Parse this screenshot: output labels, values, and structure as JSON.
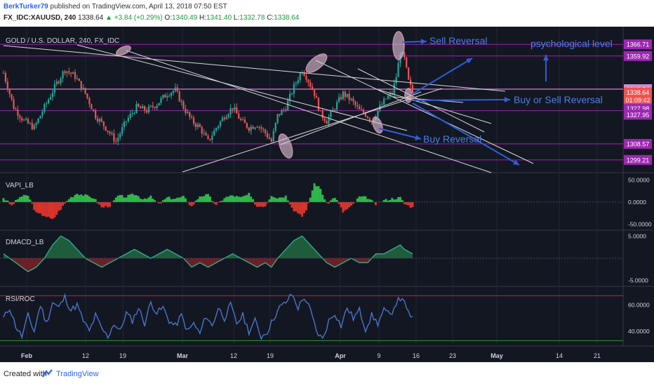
{
  "header": {
    "author": "BerkTurker79",
    "published_text": "published on TradingView.com, April 13, 2018 07:50 EST",
    "symbol_line": {
      "symbol": "FX_IDC:XAUUSD, 240",
      "last": "1338.64",
      "change": "▲ +3.84 (+0.29%)",
      "o_label": "O:",
      "o": "1340.49",
      "h_label": "H:",
      "h": "1341.40",
      "l_label": "L:",
      "l": "1332.78",
      "c_label": "C:",
      "c": "1338.64"
    }
  },
  "footer": {
    "created_with": "Created with",
    "brand": "TradingView"
  },
  "colors": {
    "background": "#131722",
    "up": "#26a69a",
    "down": "#ef5350",
    "purple": "#9c27b0",
    "annot": "#2962ff",
    "rsi": "#4a74c9",
    "macd_line": "#33aa88"
  },
  "chart_data": [
    {
      "type": "candlestick",
      "title": "GOLD / U.S. DOLLAR, 240, FX_IDC",
      "ylim": [
        1293,
        1375
      ],
      "price_labels": [
        "1366.71",
        "1359.92",
        "1340.54",
        "1338.64",
        "01:09:42",
        "1327.98",
        "1327.95",
        "1308.57",
        "1299.21"
      ],
      "horizontal_levels": [
        1366.71,
        1359.92,
        1340.54,
        1327.98,
        1308.57,
        1299.21
      ],
      "close_points": [
        [
          0,
          1350
        ],
        [
          5,
          1330
        ],
        [
          10,
          1322
        ],
        [
          15,
          1318
        ],
        [
          20,
          1330
        ],
        [
          26,
          1344
        ],
        [
          30,
          1352
        ],
        [
          35,
          1348
        ],
        [
          40,
          1338
        ],
        [
          45,
          1325
        ],
        [
          50,
          1318
        ],
        [
          55,
          1310
        ],
        [
          60,
          1322
        ],
        [
          65,
          1330
        ],
        [
          70,
          1328
        ],
        [
          75,
          1332
        ],
        [
          80,
          1338
        ],
        [
          84,
          1340
        ],
        [
          88,
          1330
        ],
        [
          92,
          1322
        ],
        [
          96,
          1318
        ],
        [
          100,
          1310
        ],
        [
          104,
          1318
        ],
        [
          108,
          1325
        ],
        [
          112,
          1330
        ],
        [
          116,
          1322
        ],
        [
          120,
          1318
        ],
        [
          124,
          1320
        ],
        [
          128,
          1315
        ],
        [
          131,
          1310
        ],
        [
          134,
          1325
        ],
        [
          138,
          1330
        ],
        [
          142,
          1342
        ],
        [
          146,
          1352
        ],
        [
          148,
          1348
        ],
        [
          152,
          1338
        ],
        [
          155,
          1326
        ],
        [
          158,
          1322
        ],
        [
          162,
          1330
        ],
        [
          166,
          1338
        ],
        [
          170,
          1334
        ],
        [
          174,
          1328
        ],
        [
          177,
          1326
        ],
        [
          180,
          1322
        ],
        [
          184,
          1330
        ],
        [
          187,
          1335
        ],
        [
          190,
          1338
        ],
        [
          192,
          1348
        ],
        [
          194,
          1362
        ],
        [
          196,
          1358
        ],
        [
          198,
          1345
        ],
        [
          200,
          1338
        ]
      ],
      "annotations": [
        "Sell Reversal",
        "psychological level",
        "Buy or Sell Reversal",
        "Buy Reversal"
      ],
      "x_ticks": [
        "Feb",
        "12",
        "19",
        "Mar",
        "12",
        "19",
        "Apr",
        "9",
        "16",
        "23",
        "May",
        "14",
        "21"
      ]
    },
    {
      "type": "histogram",
      "title": "VAPI_LB",
      "y_ticks": [
        "50.0000",
        "0.0000",
        "-50.0000"
      ],
      "ylim": [
        -60,
        60
      ],
      "values_points": [
        [
          0,
          10
        ],
        [
          4,
          -8
        ],
        [
          8,
          12
        ],
        [
          12,
          15
        ],
        [
          16,
          -25
        ],
        [
          20,
          -30
        ],
        [
          24,
          -40
        ],
        [
          28,
          -15
        ],
        [
          32,
          8
        ],
        [
          36,
          20
        ],
        [
          40,
          15
        ],
        [
          44,
          10
        ],
        [
          48,
          -12
        ],
        [
          52,
          -8
        ],
        [
          56,
          14
        ],
        [
          60,
          12
        ],
        [
          64,
          18
        ],
        [
          68,
          8
        ],
        [
          72,
          12
        ],
        [
          76,
          -5
        ],
        [
          80,
          10
        ],
        [
          84,
          8
        ],
        [
          88,
          12
        ],
        [
          92,
          -10
        ],
        [
          96,
          14
        ],
        [
          100,
          16
        ],
        [
          104,
          -8
        ],
        [
          108,
          10
        ],
        [
          112,
          15
        ],
        [
          116,
          10
        ],
        [
          120,
          18
        ],
        [
          124,
          -10
        ],
        [
          128,
          -8
        ],
        [
          131,
          16
        ],
        [
          134,
          10
        ],
        [
          138,
          14
        ],
        [
          142,
          -18
        ],
        [
          146,
          -30
        ],
        [
          148,
          -20
        ],
        [
          152,
          42
        ],
        [
          155,
          30
        ],
        [
          158,
          -5
        ],
        [
          162,
          12
        ],
        [
          166,
          -22
        ],
        [
          170,
          -10
        ],
        [
          174,
          12
        ],
        [
          178,
          10
        ],
        [
          182,
          -5
        ],
        [
          186,
          4
        ],
        [
          190,
          8
        ],
        [
          194,
          10
        ],
        [
          196,
          -4
        ],
        [
          200,
          -12
        ]
      ]
    },
    {
      "type": "area",
      "title": "DMACD_LB",
      "y_ticks": [
        "5.0000",
        "-5.0000"
      ],
      "ylim": [
        -6,
        6
      ],
      "values_points": [
        [
          0,
          1
        ],
        [
          6,
          -1
        ],
        [
          12,
          -3
        ],
        [
          16,
          -2
        ],
        [
          20,
          0
        ],
        [
          24,
          3
        ],
        [
          28,
          5
        ],
        [
          32,
          4
        ],
        [
          36,
          2
        ],
        [
          40,
          0
        ],
        [
          44,
          -1
        ],
        [
          48,
          -2
        ],
        [
          52,
          -1
        ],
        [
          56,
          0
        ],
        [
          60,
          1
        ],
        [
          64,
          2
        ],
        [
          68,
          1
        ],
        [
          72,
          0
        ],
        [
          76,
          1
        ],
        [
          80,
          2
        ],
        [
          84,
          1
        ],
        [
          88,
          0
        ],
        [
          92,
          -2
        ],
        [
          96,
          -1
        ],
        [
          100,
          -2
        ],
        [
          104,
          -1
        ],
        [
          108,
          0
        ],
        [
          112,
          1
        ],
        [
          116,
          0
        ],
        [
          120,
          -1
        ],
        [
          124,
          -2
        ],
        [
          128,
          -1
        ],
        [
          131,
          -2
        ],
        [
          134,
          0
        ],
        [
          138,
          2
        ],
        [
          142,
          4
        ],
        [
          146,
          5
        ],
        [
          150,
          3
        ],
        [
          154,
          1
        ],
        [
          158,
          -1
        ],
        [
          162,
          -2
        ],
        [
          166,
          -1
        ],
        [
          170,
          0
        ],
        [
          174,
          -1
        ],
        [
          178,
          -1
        ],
        [
          182,
          1
        ],
        [
          186,
          1
        ],
        [
          190,
          2
        ],
        [
          194,
          3
        ],
        [
          196,
          2
        ],
        [
          200,
          1
        ]
      ]
    },
    {
      "type": "line",
      "title": "RSI/ROC",
      "y_ticks": [
        "60.0000",
        "40.0000"
      ],
      "ylim": [
        30,
        72
      ],
      "upper_band": 67,
      "lower_band": 33,
      "values_points": [
        [
          0,
          50
        ],
        [
          3,
          58
        ],
        [
          6,
          44
        ],
        [
          9,
          36
        ],
        [
          12,
          52
        ],
        [
          15,
          40
        ],
        [
          18,
          60
        ],
        [
          21,
          46
        ],
        [
          24,
          62
        ],
        [
          27,
          58
        ],
        [
          30,
          66
        ],
        [
          33,
          56
        ],
        [
          36,
          60
        ],
        [
          39,
          48
        ],
        [
          42,
          40
        ],
        [
          45,
          52
        ],
        [
          48,
          42
        ],
        [
          51,
          36
        ],
        [
          54,
          46
        ],
        [
          57,
          40
        ],
        [
          60,
          54
        ],
        [
          63,
          48
        ],
        [
          66,
          58
        ],
        [
          69,
          46
        ],
        [
          72,
          62
        ],
        [
          75,
          54
        ],
        [
          78,
          58
        ],
        [
          81,
          48
        ],
        [
          84,
          44
        ],
        [
          87,
          52
        ],
        [
          90,
          40
        ],
        [
          93,
          46
        ],
        [
          96,
          38
        ],
        [
          99,
          52
        ],
        [
          102,
          44
        ],
        [
          105,
          58
        ],
        [
          108,
          50
        ],
        [
          111,
          60
        ],
        [
          114,
          46
        ],
        [
          117,
          52
        ],
        [
          120,
          40
        ],
        [
          123,
          48
        ],
        [
          126,
          36
        ],
        [
          129,
          40
        ],
        [
          132,
          50
        ],
        [
          135,
          58
        ],
        [
          138,
          62
        ],
        [
          141,
          68
        ],
        [
          144,
          58
        ],
        [
          147,
          66
        ],
        [
          150,
          56
        ],
        [
          153,
          40
        ],
        [
          156,
          34
        ],
        [
          159,
          48
        ],
        [
          162,
          54
        ],
        [
          165,
          44
        ],
        [
          168,
          58
        ],
        [
          171,
          50
        ],
        [
          174,
          56
        ],
        [
          177,
          42
        ],
        [
          180,
          52
        ],
        [
          183,
          46
        ],
        [
          186,
          56
        ],
        [
          189,
          52
        ],
        [
          192,
          62
        ],
        [
          195,
          66
        ],
        [
          197,
          56
        ],
        [
          200,
          50
        ]
      ]
    }
  ]
}
